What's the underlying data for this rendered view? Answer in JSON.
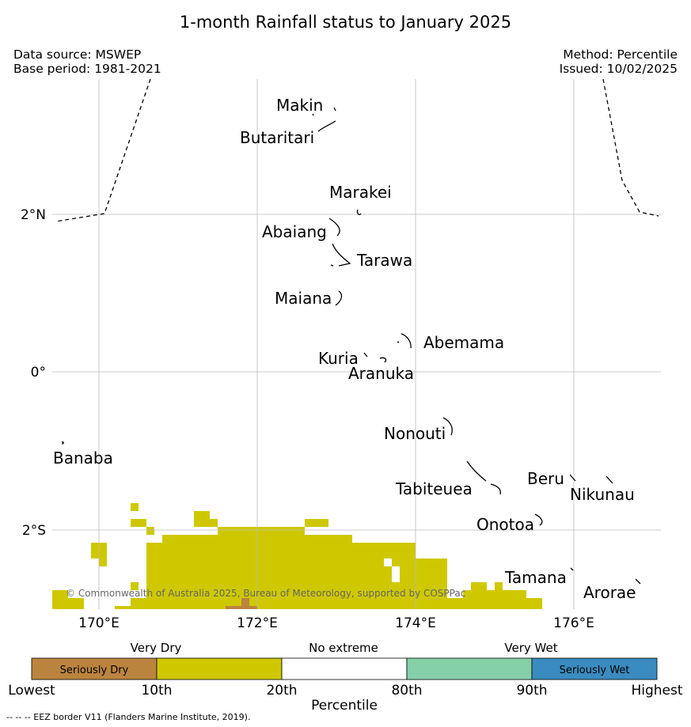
{
  "title": "1-month Rainfall status to January 2025",
  "source": {
    "line1": "Data source: MSWEP",
    "line2": "Base period: 1981-2021"
  },
  "method": {
    "line1": "Method: Percentile",
    "line2": "Issued: 10/02/2025"
  },
  "copyright": "© Commonwealth of Australia 2025, Bureau of Meteorology, supported by COSPPac",
  "axes": {
    "lon_ticks": [
      "170°E",
      "172°E",
      "174°E",
      "176°E"
    ],
    "lat_ticks": [
      "2°N",
      "0°",
      "2°S"
    ]
  },
  "islands": [
    "Makin",
    "Butaritari",
    "Marakei",
    "Abaiang",
    "Tarawa",
    "Maiana",
    "Abemama",
    "Kuria",
    "Aranuka",
    "Nonouti",
    "Banaba",
    "Beru",
    "Nikunau",
    "Tabiteuea",
    "Onotoa",
    "Tamana",
    "Arorae"
  ],
  "legend": {
    "groups": [
      "Very Dry",
      "No extreme",
      "Very Wet"
    ],
    "classes": [
      {
        "label": "Seriously Dry",
        "color": "#bb843e"
      },
      {
        "label": "",
        "color": "#cfc800"
      },
      {
        "label": "",
        "color": "#ffffff"
      },
      {
        "label": "",
        "color": "#85d0a8"
      },
      {
        "label": "Seriously Wet",
        "color": "#3a8bbf"
      }
    ],
    "ticks": [
      "Lowest",
      "10th",
      "20th",
      "80th",
      "90th",
      "Highest"
    ],
    "axis_label": "Percentile"
  },
  "footnote": "--  --  -- EEZ border V11 (Flanders Marine Institute, 2019)."
}
